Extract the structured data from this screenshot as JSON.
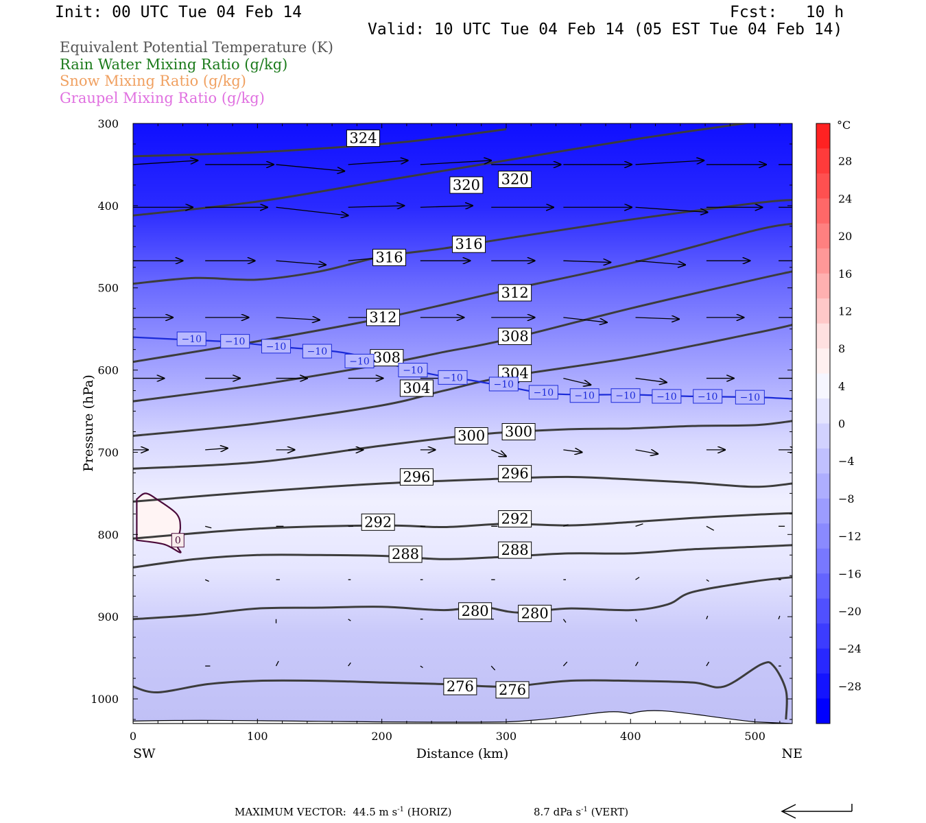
{
  "header": {
    "init": "Init: 00 UTC Tue 04 Feb 14",
    "fcst": "Fcst:   10 h",
    "valid": "Valid: 10 UTC Tue 04 Feb 14 (05 EST Tue 04 Feb 14)"
  },
  "legend": [
    {
      "label": "Equivalent Potential Temperature (K)",
      "color": "#555555"
    },
    {
      "label": "Rain Water Mixing Ratio (g/kg)",
      "color": "#1a7a1a"
    },
    {
      "label": "Snow Mixing Ratio (g/kg)",
      "color": "#f0a060"
    },
    {
      "label": "Graupel Mixing Ratio (g/kg)",
      "color": "#e070e0"
    }
  ],
  "footer": {
    "max_vector": "MAXIMUM VECTOR:  44.5 m s",
    "horiz": "(HORIZ)",
    "vert_value": "8.7 dPa s",
    "vert": "(VERT)",
    "exp": "-1"
  },
  "chart_data": {
    "type": "cross-section",
    "xlabel": "Distance (km)",
    "ylabel": "Pressure (hPa)",
    "x_ticks": [
      0,
      100,
      200,
      300,
      400,
      500
    ],
    "xlim": [
      0,
      530
    ],
    "y_ticks": [
      300,
      400,
      500,
      600,
      700,
      800,
      900,
      1000
    ],
    "ylim": [
      300,
      1030
    ],
    "endpoints": {
      "left": "SW",
      "right": "NE"
    },
    "colorbar": {
      "unit": "°C",
      "tick_labels": [
        "28",
        "24",
        "20",
        "16",
        "12",
        "8",
        "4",
        "0",
        "−4",
        "−8",
        "−12",
        "−16",
        "−20",
        "−24",
        "−28"
      ],
      "tick_values": [
        28,
        24,
        20,
        16,
        12,
        8,
        4,
        0,
        -4,
        -8,
        -12,
        -16,
        -20,
        -24,
        -28
      ],
      "range": [
        -32,
        32
      ],
      "colors_top_to_bottom": [
        "#ff2222",
        "#ff3b3b",
        "#ff5050",
        "#ff6868",
        "#ff8080",
        "#ff9898",
        "#ffb0b0",
        "#ffc8c8",
        "#ffe0e0",
        "#fff0f0",
        "#f6f6ff",
        "#e4e4ff",
        "#d2d2ff",
        "#c0c0ff",
        "#aeaeff",
        "#9c9cff",
        "#8a8aff",
        "#7878ff",
        "#6464ff",
        "#5050ff",
        "#3c3cff",
        "#2828ff",
        "#1414ff",
        "#0000ff"
      ]
    },
    "theta_e_contours": [
      {
        "level": 276,
        "points": [
          [
            0,
            985
          ],
          [
            20,
            992
          ],
          [
            60,
            982
          ],
          [
            100,
            978
          ],
          [
            150,
            978
          ],
          [
            200,
            980
          ],
          [
            250,
            982
          ],
          [
            300,
            985
          ],
          [
            350,
            978
          ],
          [
            400,
            978
          ],
          [
            450,
            980
          ],
          [
            475,
            985
          ],
          [
            505,
            958
          ],
          [
            515,
            960
          ],
          [
            525,
            990
          ],
          [
            525,
            1025
          ]
        ]
      },
      {
        "level": 280,
        "points": [
          [
            0,
            903
          ],
          [
            50,
            898
          ],
          [
            100,
            890
          ],
          [
            150,
            889
          ],
          [
            200,
            888
          ],
          [
            250,
            892
          ],
          [
            280,
            888
          ],
          [
            310,
            895
          ],
          [
            350,
            890
          ],
          [
            400,
            892
          ],
          [
            430,
            885
          ],
          [
            450,
            870
          ],
          [
            500,
            857
          ],
          [
            530,
            852
          ]
        ]
      },
      {
        "level": 288,
        "points": [
          [
            0,
            840
          ],
          [
            50,
            830
          ],
          [
            100,
            825
          ],
          [
            150,
            825
          ],
          [
            200,
            826
          ],
          [
            250,
            830
          ],
          [
            300,
            827
          ],
          [
            350,
            823
          ],
          [
            400,
            823
          ],
          [
            450,
            818
          ],
          [
            500,
            815
          ],
          [
            530,
            813
          ]
        ]
      },
      {
        "level": 292,
        "points": [
          [
            0,
            805
          ],
          [
            100,
            793
          ],
          [
            200,
            789
          ],
          [
            250,
            791
          ],
          [
            300,
            787
          ],
          [
            350,
            789
          ],
          [
            400,
            785
          ],
          [
            450,
            780
          ],
          [
            500,
            776
          ],
          [
            530,
            774
          ]
        ]
      },
      {
        "level": 296,
        "points": [
          [
            0,
            760
          ],
          [
            100,
            748
          ],
          [
            200,
            738
          ],
          [
            300,
            732
          ],
          [
            350,
            730
          ],
          [
            400,
            733
          ],
          [
            450,
            737
          ],
          [
            500,
            742
          ],
          [
            530,
            738
          ]
        ]
      },
      {
        "level": 300,
        "points": [
          [
            0,
            720
          ],
          [
            100,
            712
          ],
          [
            200,
            692
          ],
          [
            280,
            678
          ],
          [
            350,
            672
          ],
          [
            400,
            671
          ],
          [
            450,
            668
          ],
          [
            500,
            667
          ],
          [
            530,
            662
          ]
        ]
      },
      {
        "level": 304,
        "points": [
          [
            0,
            680
          ],
          [
            100,
            665
          ],
          [
            200,
            643
          ],
          [
            250,
            625
          ],
          [
            300,
            608
          ],
          [
            400,
            585
          ],
          [
            500,
            555
          ],
          [
            530,
            545
          ]
        ]
      },
      {
        "level": 308,
        "points": [
          [
            0,
            638
          ],
          [
            100,
            618
          ],
          [
            200,
            593
          ],
          [
            250,
            578
          ],
          [
            300,
            563
          ],
          [
            400,
            525
          ],
          [
            500,
            490
          ],
          [
            530,
            480
          ]
        ]
      },
      {
        "level": 312,
        "points": [
          [
            0,
            590
          ],
          [
            100,
            565
          ],
          [
            200,
            537
          ],
          [
            300,
            503
          ],
          [
            400,
            470
          ],
          [
            500,
            430
          ],
          [
            530,
            422
          ]
        ]
      },
      {
        "level": 316,
        "points": [
          [
            0,
            495
          ],
          [
            50,
            488
          ],
          [
            100,
            490
          ],
          [
            150,
            480
          ],
          [
            200,
            462
          ],
          [
            250,
            452
          ],
          [
            300,
            440
          ],
          [
            400,
            417
          ],
          [
            500,
            397
          ],
          [
            530,
            393
          ]
        ]
      },
      {
        "level": 320,
        "points": [
          [
            0,
            412
          ],
          [
            100,
            395
          ],
          [
            200,
            370
          ],
          [
            300,
            345
          ],
          [
            400,
            320
          ],
          [
            500,
            298
          ],
          [
            530,
            290
          ]
        ]
      },
      {
        "level": 324,
        "points": [
          [
            0,
            340
          ],
          [
            100,
            335
          ],
          [
            200,
            325
          ],
          [
            250,
            317
          ],
          [
            300,
            307
          ]
        ]
      }
    ],
    "theta_e_labels": [
      {
        "level": 324,
        "x": 185,
        "p": 318
      },
      {
        "level": 320,
        "x": 268,
        "p": 375
      },
      {
        "level": 320,
        "x": 307,
        "p": 368
      },
      {
        "level": 316,
        "x": 206,
        "p": 463
      },
      {
        "level": 316,
        "x": 270,
        "p": 447
      },
      {
        "level": 312,
        "x": 307,
        "p": 506
      },
      {
        "level": 312,
        "x": 201,
        "p": 536
      },
      {
        "level": 308,
        "x": 307,
        "p": 559
      },
      {
        "level": 308,
        "x": 204,
        "p": 585
      },
      {
        "level": 304,
        "x": 307,
        "p": 604
      },
      {
        "level": 304,
        "x": 228,
        "p": 622
      },
      {
        "level": 300,
        "x": 272,
        "p": 680
      },
      {
        "level": 300,
        "x": 310,
        "p": 675
      },
      {
        "level": 296,
        "x": 228,
        "p": 730
      },
      {
        "level": 296,
        "x": 307,
        "p": 726
      },
      {
        "level": 292,
        "x": 197,
        "p": 785
      },
      {
        "level": 292,
        "x": 307,
        "p": 781
      },
      {
        "level": 288,
        "x": 219,
        "p": 824
      },
      {
        "level": 288,
        "x": 307,
        "p": 819
      },
      {
        "level": 280,
        "x": 275,
        "p": 893
      },
      {
        "level": 280,
        "x": 323,
        "p": 896
      },
      {
        "level": 276,
        "x": 263,
        "p": 985
      },
      {
        "level": 276,
        "x": 305,
        "p": 989
      }
    ],
    "temp_contours": [
      {
        "level": -10,
        "points": [
          [
            0,
            560
          ],
          [
            40,
            563
          ],
          [
            80,
            566
          ],
          [
            120,
            572
          ],
          [
            160,
            577
          ],
          [
            180,
            582
          ],
          [
            200,
            590
          ],
          [
            240,
            605
          ],
          [
            270,
            612
          ],
          [
            300,
            620
          ],
          [
            330,
            628
          ],
          [
            360,
            630
          ],
          [
            400,
            630
          ],
          [
            450,
            632
          ],
          [
            500,
            633
          ],
          [
            530,
            635
          ]
        ]
      },
      {
        "level": 0,
        "points": [
          [
            3,
            757
          ],
          [
            10,
            750
          ],
          [
            20,
            758
          ],
          [
            35,
            775
          ],
          [
            38,
            792
          ],
          [
            35,
            812
          ],
          [
            38,
            822
          ],
          [
            25,
            812
          ],
          [
            3,
            807
          ]
        ]
      }
    ],
    "temp_labels": [
      {
        "text": "−10",
        "x": 47,
        "p": 562
      },
      {
        "text": "−10",
        "x": 82,
        "p": 565
      },
      {
        "text": "−10",
        "x": 115,
        "p": 571
      },
      {
        "text": "−10",
        "x": 148,
        "p": 577
      },
      {
        "text": "−10",
        "x": 182,
        "p": 589
      },
      {
        "text": "−10",
        "x": 225,
        "p": 600
      },
      {
        "text": "−10",
        "x": 257,
        "p": 609
      },
      {
        "text": "−10",
        "x": 298,
        "p": 617
      },
      {
        "text": "−10",
        "x": 330,
        "p": 627
      },
      {
        "text": "−10",
        "x": 363,
        "p": 631
      },
      {
        "text": "−10",
        "x": 396,
        "p": 631
      },
      {
        "text": "−10",
        "x": 429,
        "p": 632
      },
      {
        "text": "−10",
        "x": 462,
        "p": 632
      },
      {
        "text": "−10",
        "x": 496,
        "p": 633
      },
      {
        "text": "0",
        "x": 36,
        "p": 807
      }
    ],
    "wind_rows": [
      {
        "p": 350,
        "x_start": [
          0,
          58,
          115,
          173,
          231,
          288,
          346,
          404,
          461,
          519
        ],
        "dx": [
          52,
          55,
          55,
          48,
          57,
          56,
          55,
          55,
          48,
          52
        ],
        "dp": [
          -5,
          0,
          8,
          -5,
          -5,
          0,
          0,
          -5,
          0,
          0
        ]
      },
      {
        "p": 402,
        "x_start": [
          0,
          58,
          115,
          173,
          231,
          288,
          346,
          404,
          461,
          519
        ],
        "dx": [
          48,
          50,
          58,
          45,
          42,
          50,
          55,
          58,
          45,
          52
        ],
        "dp": [
          0,
          0,
          10,
          -2,
          -2,
          0,
          0,
          6,
          0,
          0
        ]
      },
      {
        "p": 467,
        "x_start": [
          0,
          58,
          115,
          173,
          231,
          288,
          346,
          404,
          461,
          519
        ],
        "dx": [
          40,
          40,
          40,
          35,
          40,
          35,
          38,
          40,
          35,
          35
        ],
        "dp": [
          0,
          0,
          5,
          -5,
          0,
          0,
          2,
          5,
          0,
          0
        ]
      },
      {
        "p": 536,
        "x_start": [
          0,
          58,
          115,
          173,
          231,
          288,
          346,
          404,
          461,
          519
        ],
        "dx": [
          32,
          35,
          35,
          40,
          35,
          35,
          35,
          35,
          30,
          35
        ],
        "dp": [
          0,
          0,
          3,
          0,
          0,
          0,
          6,
          2,
          0,
          0
        ]
      },
      {
        "p": 610,
        "x_start": [
          0,
          58,
          115,
          173,
          231,
          288,
          346,
          404,
          461,
          519
        ],
        "dx": [
          25,
          28,
          25,
          28,
          22,
          22,
          22,
          25,
          22,
          22
        ],
        "dp": [
          0,
          0,
          0,
          0,
          0,
          5,
          8,
          5,
          0,
          0
        ]
      },
      {
        "p": 697,
        "x_start": [
          0,
          58,
          115,
          173,
          231,
          288,
          346,
          404,
          461,
          519
        ],
        "dx": [
          12,
          18,
          15,
          12,
          12,
          12,
          15,
          18,
          15,
          15
        ],
        "dp": [
          0,
          -2,
          0,
          0,
          0,
          8,
          3,
          5,
          0,
          0
        ]
      },
      {
        "p": 790,
        "x_start": [
          58,
          115,
          173,
          231,
          288,
          346,
          404,
          461,
          519
        ],
        "dx": [
          5,
          6,
          4,
          4,
          5,
          4,
          6,
          6,
          5
        ],
        "dp": [
          2,
          0,
          0,
          0,
          0,
          -2,
          -3,
          5,
          0
        ]
      },
      {
        "p": 855,
        "x_start": [
          58,
          115,
          173,
          231,
          288,
          346,
          404,
          461,
          519
        ],
        "dx": [
          3,
          3,
          2,
          2,
          3,
          2,
          3,
          2,
          2
        ],
        "dp": [
          2,
          0,
          0,
          0,
          0,
          0,
          -3,
          2,
          0
        ]
      },
      {
        "p": 903,
        "x_start": [
          115,
          173,
          231,
          288,
          346,
          404,
          461,
          519
        ],
        "dx": [
          0,
          2,
          2,
          2,
          2,
          1,
          1,
          1
        ],
        "dp": [
          5,
          2,
          0,
          0,
          4,
          3,
          -4,
          -4
        ]
      },
      {
        "p": 960,
        "x_start": [
          58,
          115,
          173,
          231,
          288,
          346,
          404,
          461,
          519
        ],
        "dx": [
          4,
          2,
          2,
          2,
          3,
          3,
          2,
          2,
          2
        ],
        "dp": [
          0,
          -6,
          -4,
          2,
          5,
          -5,
          -5,
          -5,
          0
        ]
      }
    ]
  }
}
